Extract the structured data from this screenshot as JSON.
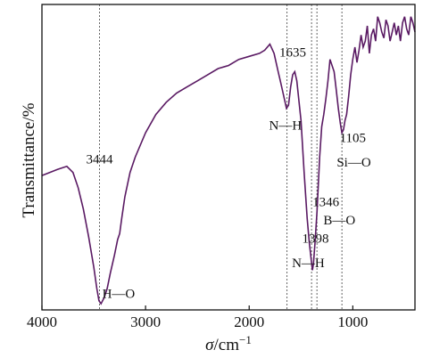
{
  "chart_data": {
    "type": "line",
    "title": "",
    "xlabel_italic": "σ",
    "xlabel_unit": "/cm",
    "xlabel_exp": "−1",
    "ylabel": "Transmittance/%",
    "xlim": [
      4000,
      400
    ],
    "x_ticks": [
      4000,
      3000,
      2000,
      1000
    ],
    "x_tick_labels": [
      "4000",
      "3000",
      "2000",
      "1000"
    ],
    "ylim": [
      0,
      100
    ],
    "y_ticks_labeled": false,
    "color": "#5a1a63",
    "grid": false,
    "legend": "none",
    "reference_lines": [
      3444,
      1635,
      1398,
      1346,
      1105
    ],
    "annotations": [
      {
        "text": "3444",
        "x": 3444,
        "y": 48
      },
      {
        "text": "H—O",
        "x": 3260,
        "y": 4
      },
      {
        "text": "1635",
        "x": 1580,
        "y": 83
      },
      {
        "text": "N—H",
        "x": 1650,
        "y": 59
      },
      {
        "text": "1105",
        "x": 1000,
        "y": 55
      },
      {
        "text": "Si—O",
        "x": 990,
        "y": 47
      },
      {
        "text": "1346",
        "x": 1260,
        "y": 34
      },
      {
        "text": "B—O",
        "x": 1130,
        "y": 28
      },
      {
        "text": "1398",
        "x": 1360,
        "y": 22
      },
      {
        "text": "N—H",
        "x": 1430,
        "y": 14
      }
    ],
    "series": [
      {
        "x": [
          4000,
          3850,
          3760,
          3700,
          3650,
          3600,
          3550,
          3500,
          3470,
          3450,
          3430,
          3400,
          3370,
          3340,
          3300,
          3270,
          3250,
          3230,
          3200,
          3150,
          3100,
          3000,
          2900,
          2800,
          2700,
          2600,
          2500,
          2400,
          2300,
          2200,
          2100,
          2000,
          1900,
          1850,
          1800,
          1760,
          1720,
          1700,
          1680,
          1660,
          1640,
          1620,
          1600,
          1580,
          1560,
          1540,
          1500,
          1470,
          1440,
          1420,
          1400,
          1390,
          1380,
          1365,
          1346,
          1320,
          1300,
          1280,
          1260,
          1240,
          1220,
          1200,
          1180,
          1160,
          1140,
          1120,
          1105,
          1090,
          1075,
          1060,
          1040,
          1020,
          1000,
          980,
          960,
          940,
          920,
          900,
          880,
          860,
          840,
          820,
          800,
          780,
          760,
          740,
          720,
          700,
          680,
          660,
          640,
          620,
          600,
          580,
          560,
          540,
          520,
          500,
          480,
          460,
          440,
          420,
          400
        ],
        "y": [
          44,
          46,
          47,
          45,
          40,
          33,
          24,
          14,
          7,
          3,
          2,
          4,
          7,
          12,
          18,
          23,
          25,
          30,
          37,
          45,
          50,
          58,
          64,
          68,
          71,
          73,
          75,
          77,
          79,
          80,
          82,
          83,
          84,
          85,
          87,
          84,
          78,
          75,
          72,
          69,
          66,
          67,
          73,
          77,
          78,
          75,
          62,
          45,
          30,
          22,
          16,
          13,
          15,
          22,
          32,
          50,
          60,
          64,
          69,
          75,
          82,
          80,
          78,
          72,
          66,
          61,
          58,
          59,
          62,
          64,
          70,
          77,
          82,
          86,
          81,
          85,
          90,
          86,
          88,
          93,
          84,
          90,
          92,
          88,
          96,
          94,
          91,
          89,
          95,
          93,
          88,
          91,
          94,
          90,
          93,
          88,
          94,
          96,
          92,
          90,
          96,
          94,
          91
        ]
      }
    ]
  }
}
